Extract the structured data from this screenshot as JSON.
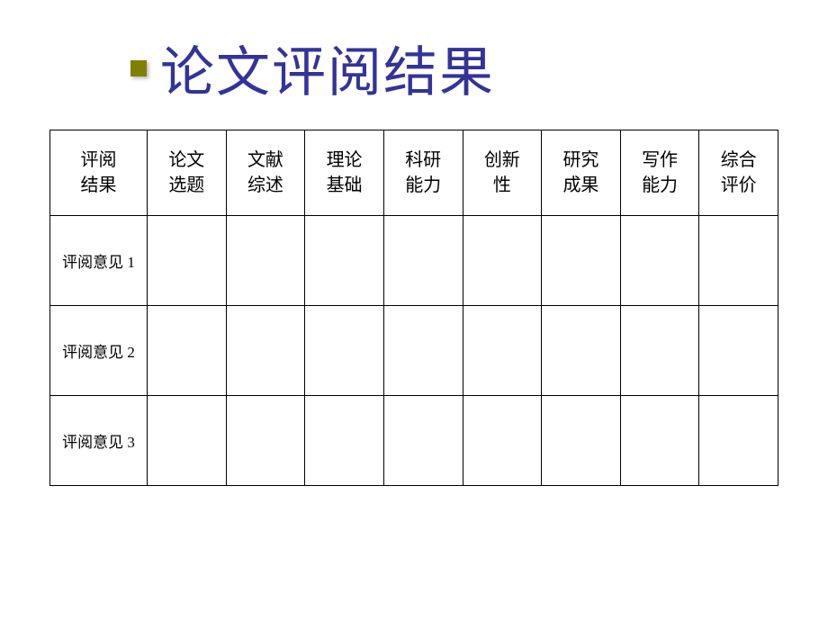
{
  "slide": {
    "title": "论文评阅结果",
    "title_color": "#333399",
    "title_fontsize": 60,
    "bullet_color": "#808000",
    "background_color": "#ffffff"
  },
  "table": {
    "type": "table",
    "border_color": "#000000",
    "text_color": "#000000",
    "header_fontsize": 20,
    "row_label_fontsize": 17,
    "columns": [
      "评阅\n结果",
      "论文\n选题",
      "文献\n综述",
      "理论\n基础",
      "科研\n能力",
      "创新\n性",
      "研究\n成果",
      "写作\n能力",
      "综合\n评价"
    ],
    "rows": [
      {
        "label": "评阅意见 1",
        "cells": [
          "",
          "",
          "",
          "",
          "",
          "",
          "",
          ""
        ]
      },
      {
        "label": "评阅意见 2",
        "cells": [
          "",
          "",
          "",
          "",
          "",
          "",
          "",
          ""
        ]
      },
      {
        "label": "评阅意见 3",
        "cells": [
          "",
          "",
          "",
          "",
          "",
          "",
          "",
          ""
        ]
      }
    ]
  }
}
